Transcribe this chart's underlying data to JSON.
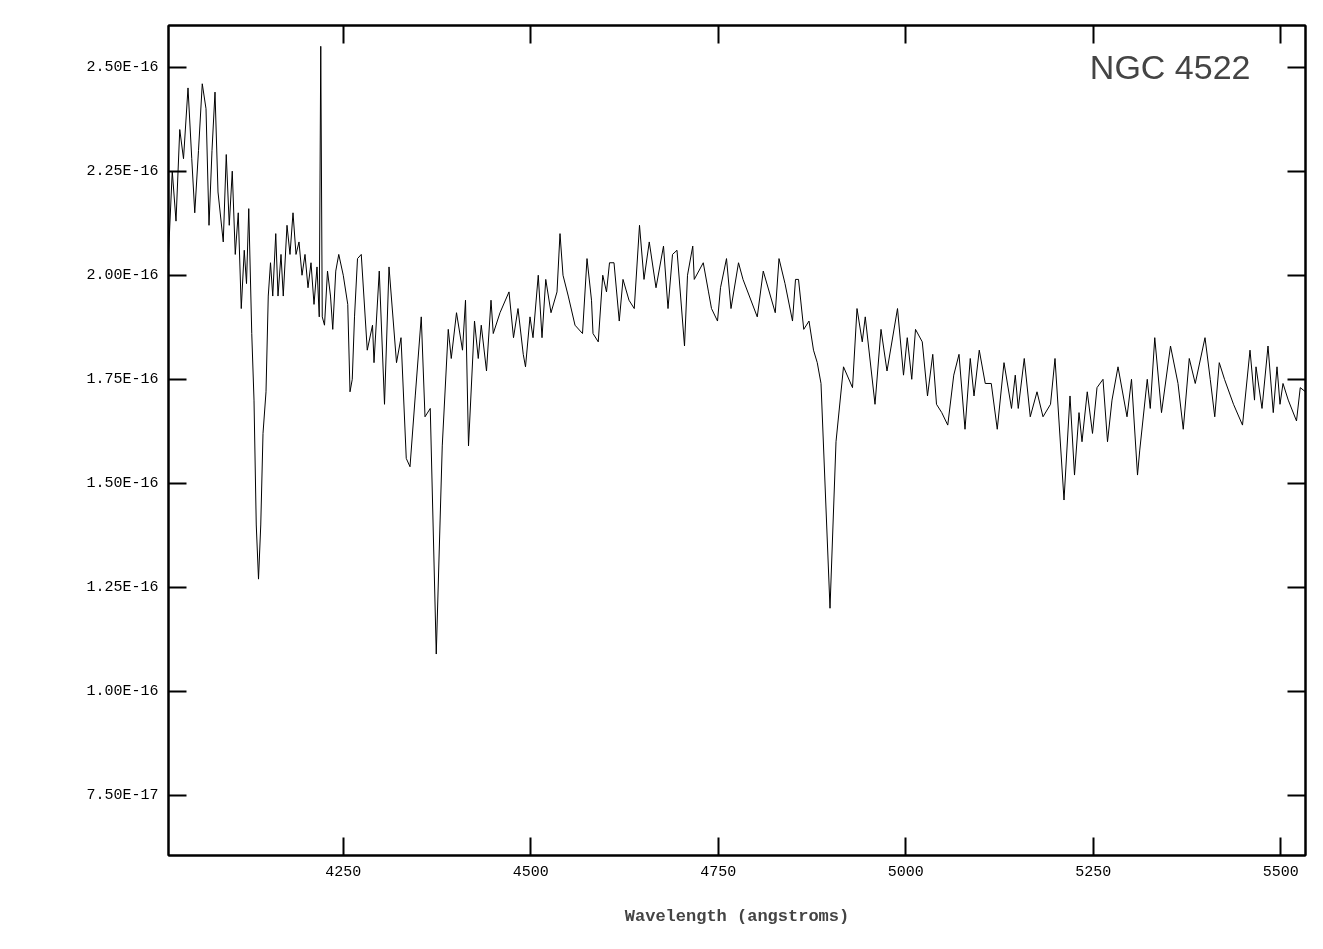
{
  "chart_data": {
    "type": "line",
    "xlabel": "Wavelength (angstroms)",
    "annotations": [
      "NGC 4522"
    ],
    "xlim": [
      4017,
      5533
    ],
    "ylim": [
      6.06e-17,
      2.6e-16
    ],
    "xticks": [
      4250,
      4500,
      4750,
      5000,
      5250,
      5500
    ],
    "yticks": [
      {
        "value": 7.5e-17,
        "label": "7.50E-17"
      },
      {
        "value": 1e-16,
        "label": "1.00E-16"
      },
      {
        "value": 1.25e-16,
        "label": "1.25E-16"
      },
      {
        "value": 1.5e-16,
        "label": "1.50E-16"
      },
      {
        "value": 1.75e-16,
        "label": "1.75E-16"
      },
      {
        "value": 2e-16,
        "label": "2.00E-16"
      },
      {
        "value": 2.25e-16,
        "label": "2.25E-16"
      },
      {
        "value": 2.5e-16,
        "label": "2.50E-16"
      }
    ],
    "series": [
      {
        "color": "#000000",
        "x": [
          4017,
          4022,
          4027,
          4032,
          4037,
          4043,
          4048,
          4052,
          4057,
          4062,
          4067,
          4071,
          4075,
          4079,
          4083,
          4090,
          4094,
          4098,
          4102,
          4106,
          4110,
          4114,
          4118,
          4121,
          4124,
          4128,
          4131,
          4134,
          4137,
          4140,
          4143,
          4147,
          4150,
          4153,
          4156,
          4160,
          4163,
          4167,
          4170,
          4175,
          4179,
          4183,
          4187,
          4191,
          4195,
          4199,
          4203,
          4207,
          4211,
          4215,
          4218,
          4220,
          4222,
          4225,
          4229,
          4233,
          4236,
          4240,
          4244,
          4250,
          4256,
          4259,
          4262,
          4265,
          4269,
          4274,
          4282,
          4289,
          4291,
          4298,
          4305,
          4311,
          4321,
          4327,
          4334,
          4339,
          4346,
          4354,
          4359,
          4366,
          4374,
          4382,
          4390,
          4394,
          4401,
          4409,
          4413,
          4417,
          4425,
          4430,
          4434,
          4441,
          4447,
          4450,
          4459,
          4471,
          4477,
          4483,
          4490,
          4493,
          4499,
          4503,
          4510,
          4515,
          4520,
          4527,
          4535,
          4539,
          4543,
          4550,
          4559,
          4569,
          4575,
          4581,
          4583,
          4590,
          4596,
          4601,
          4605,
          4611,
          4618,
          4623,
          4631,
          4638,
          4645,
          4651,
          4658,
          4667,
          4677,
          4683,
          4689,
          4695,
          4705,
          4709,
          4716,
          4718,
          4730,
          4737,
          4741,
          4749,
          4753,
          4761,
          4767,
          4777,
          4783,
          4802,
          4810,
          4826,
          4831,
          4839,
          4849,
          4853,
          4857,
          4864,
          4871,
          4877,
          4882,
          4887,
          4899,
          4907,
          4917,
          4929,
          4935,
          4942,
          4946,
          4959,
          4967,
          4975,
          4989,
          4997,
          5002,
          5008,
          5013,
          5022,
          5029,
          5036,
          5041,
          5048,
          5056,
          5064,
          5071,
          5079,
          5086,
          5091,
          5098,
          5106,
          5114,
          5122,
          5131,
          5141,
          5146,
          5150,
          5158,
          5166,
          5175,
          5183,
          5193,
          5199,
          5211,
          5219,
          5225,
          5231,
          5235,
          5242,
          5249,
          5255,
          5263,
          5269,
          5275,
          5283,
          5295,
          5301,
          5309,
          5312,
          5322,
          5326,
          5332,
          5341,
          5353,
          5363,
          5370,
          5378,
          5386,
          5399,
          5406,
          5412,
          5418,
          5425,
          5437,
          5449,
          5459,
          5465,
          5467,
          5475,
          5483,
          5490,
          5495,
          5499,
          5503,
          5510,
          5521,
          5526,
          5533
        ],
        "values": [
          2.05e-16,
          2.25e-16,
          2.13e-16,
          2.35e-16,
          2.28e-16,
          2.45e-16,
          2.28e-16,
          2.15e-16,
          2.3e-16,
          2.46e-16,
          2.4e-16,
          2.12e-16,
          2.3e-16,
          2.44e-16,
          2.2e-16,
          2.08e-16,
          2.29e-16,
          2.12e-16,
          2.25e-16,
          2.05e-16,
          2.15e-16,
          1.92e-16,
          2.06e-16,
          1.98e-16,
          2.16e-16,
          1.86e-16,
          1.7e-16,
          1.4e-16,
          1.27e-16,
          1.4e-16,
          1.62e-16,
          1.72e-16,
          1.95e-16,
          2.03e-16,
          1.95e-16,
          2.1e-16,
          1.95e-16,
          2.05e-16,
          1.95e-16,
          2.12e-16,
          2.05e-16,
          2.15e-16,
          2.05e-16,
          2.08e-16,
          2e-16,
          2.05e-16,
          1.97e-16,
          2.03e-16,
          1.93e-16,
          2.02e-16,
          1.9e-16,
          2.55e-16,
          1.9e-16,
          1.88e-16,
          2.01e-16,
          1.95e-16,
          1.87e-16,
          2.01e-16,
          2.05e-16,
          2e-16,
          1.93e-16,
          1.72e-16,
          1.75e-16,
          1.9e-16,
          2.04e-16,
          2.05e-16,
          1.82e-16,
          1.88e-16,
          1.79e-16,
          2.01e-16,
          1.69e-16,
          2.02e-16,
          1.79e-16,
          1.85e-16,
          1.56e-16,
          1.54e-16,
          1.71e-16,
          1.9e-16,
          1.66e-16,
          1.68e-16,
          1.09e-16,
          1.59e-16,
          1.87e-16,
          1.8e-16,
          1.91e-16,
          1.82e-16,
          1.94e-16,
          1.59e-16,
          1.89e-16,
          1.8e-16,
          1.88e-16,
          1.77e-16,
          1.94e-16,
          1.86e-16,
          1.91e-16,
          1.96e-16,
          1.85e-16,
          1.92e-16,
          1.81e-16,
          1.78e-16,
          1.9e-16,
          1.85e-16,
          2e-16,
          1.85e-16,
          1.99e-16,
          1.91e-16,
          1.96e-16,
          2.1e-16,
          2e-16,
          1.95e-16,
          1.88e-16,
          1.86e-16,
          2.04e-16,
          1.94e-16,
          1.86e-16,
          1.84e-16,
          2e-16,
          1.96e-16,
          2.03e-16,
          2.03e-16,
          1.89e-16,
          1.99e-16,
          1.94e-16,
          1.92e-16,
          2.12e-16,
          1.99e-16,
          2.08e-16,
          1.97e-16,
          2.07e-16,
          1.92e-16,
          2.05e-16,
          2.06e-16,
          1.83e-16,
          2e-16,
          2.07e-16,
          1.99e-16,
          2.03e-16,
          1.96e-16,
          1.92e-16,
          1.89e-16,
          1.97e-16,
          2.04e-16,
          1.92e-16,
          2.03e-16,
          1.99e-16,
          1.9e-16,
          2.01e-16,
          1.91e-16,
          2.04e-16,
          1.98e-16,
          1.89e-16,
          1.99e-16,
          1.99e-16,
          1.87e-16,
          1.89e-16,
          1.82e-16,
          1.79e-16,
          1.74e-16,
          1.2e-16,
          1.6e-16,
          1.78e-16,
          1.73e-16,
          1.92e-16,
          1.84e-16,
          1.9e-16,
          1.69e-16,
          1.87e-16,
          1.77e-16,
          1.92e-16,
          1.76e-16,
          1.85e-16,
          1.75e-16,
          1.87e-16,
          1.84e-16,
          1.71e-16,
          1.81e-16,
          1.69e-16,
          1.67e-16,
          1.64e-16,
          1.76e-16,
          1.81e-16,
          1.63e-16,
          1.8e-16,
          1.71e-16,
          1.82e-16,
          1.74e-16,
          1.74e-16,
          1.63e-16,
          1.79e-16,
          1.68e-16,
          1.76e-16,
          1.68e-16,
          1.8e-16,
          1.66e-16,
          1.72e-16,
          1.66e-16,
          1.69e-16,
          1.8e-16,
          1.46e-16,
          1.71e-16,
          1.52e-16,
          1.67e-16,
          1.6e-16,
          1.72e-16,
          1.62e-16,
          1.73e-16,
          1.75e-16,
          1.6e-16,
          1.7e-16,
          1.78e-16,
          1.66e-16,
          1.75e-16,
          1.52e-16,
          1.58e-16,
          1.75e-16,
          1.68e-16,
          1.85e-16,
          1.67e-16,
          1.83e-16,
          1.74e-16,
          1.63e-16,
          1.8e-16,
          1.74e-16,
          1.85e-16,
          1.75e-16,
          1.66e-16,
          1.79e-16,
          1.75e-16,
          1.69e-16,
          1.64e-16,
          1.82e-16,
          1.7e-16,
          1.78e-16,
          1.68e-16,
          1.83e-16,
          1.67e-16,
          1.78e-16,
          1.69e-16,
          1.74e-16,
          1.7e-16,
          1.65e-16,
          1.73e-16,
          1.72e-16
        ]
      }
    ]
  }
}
